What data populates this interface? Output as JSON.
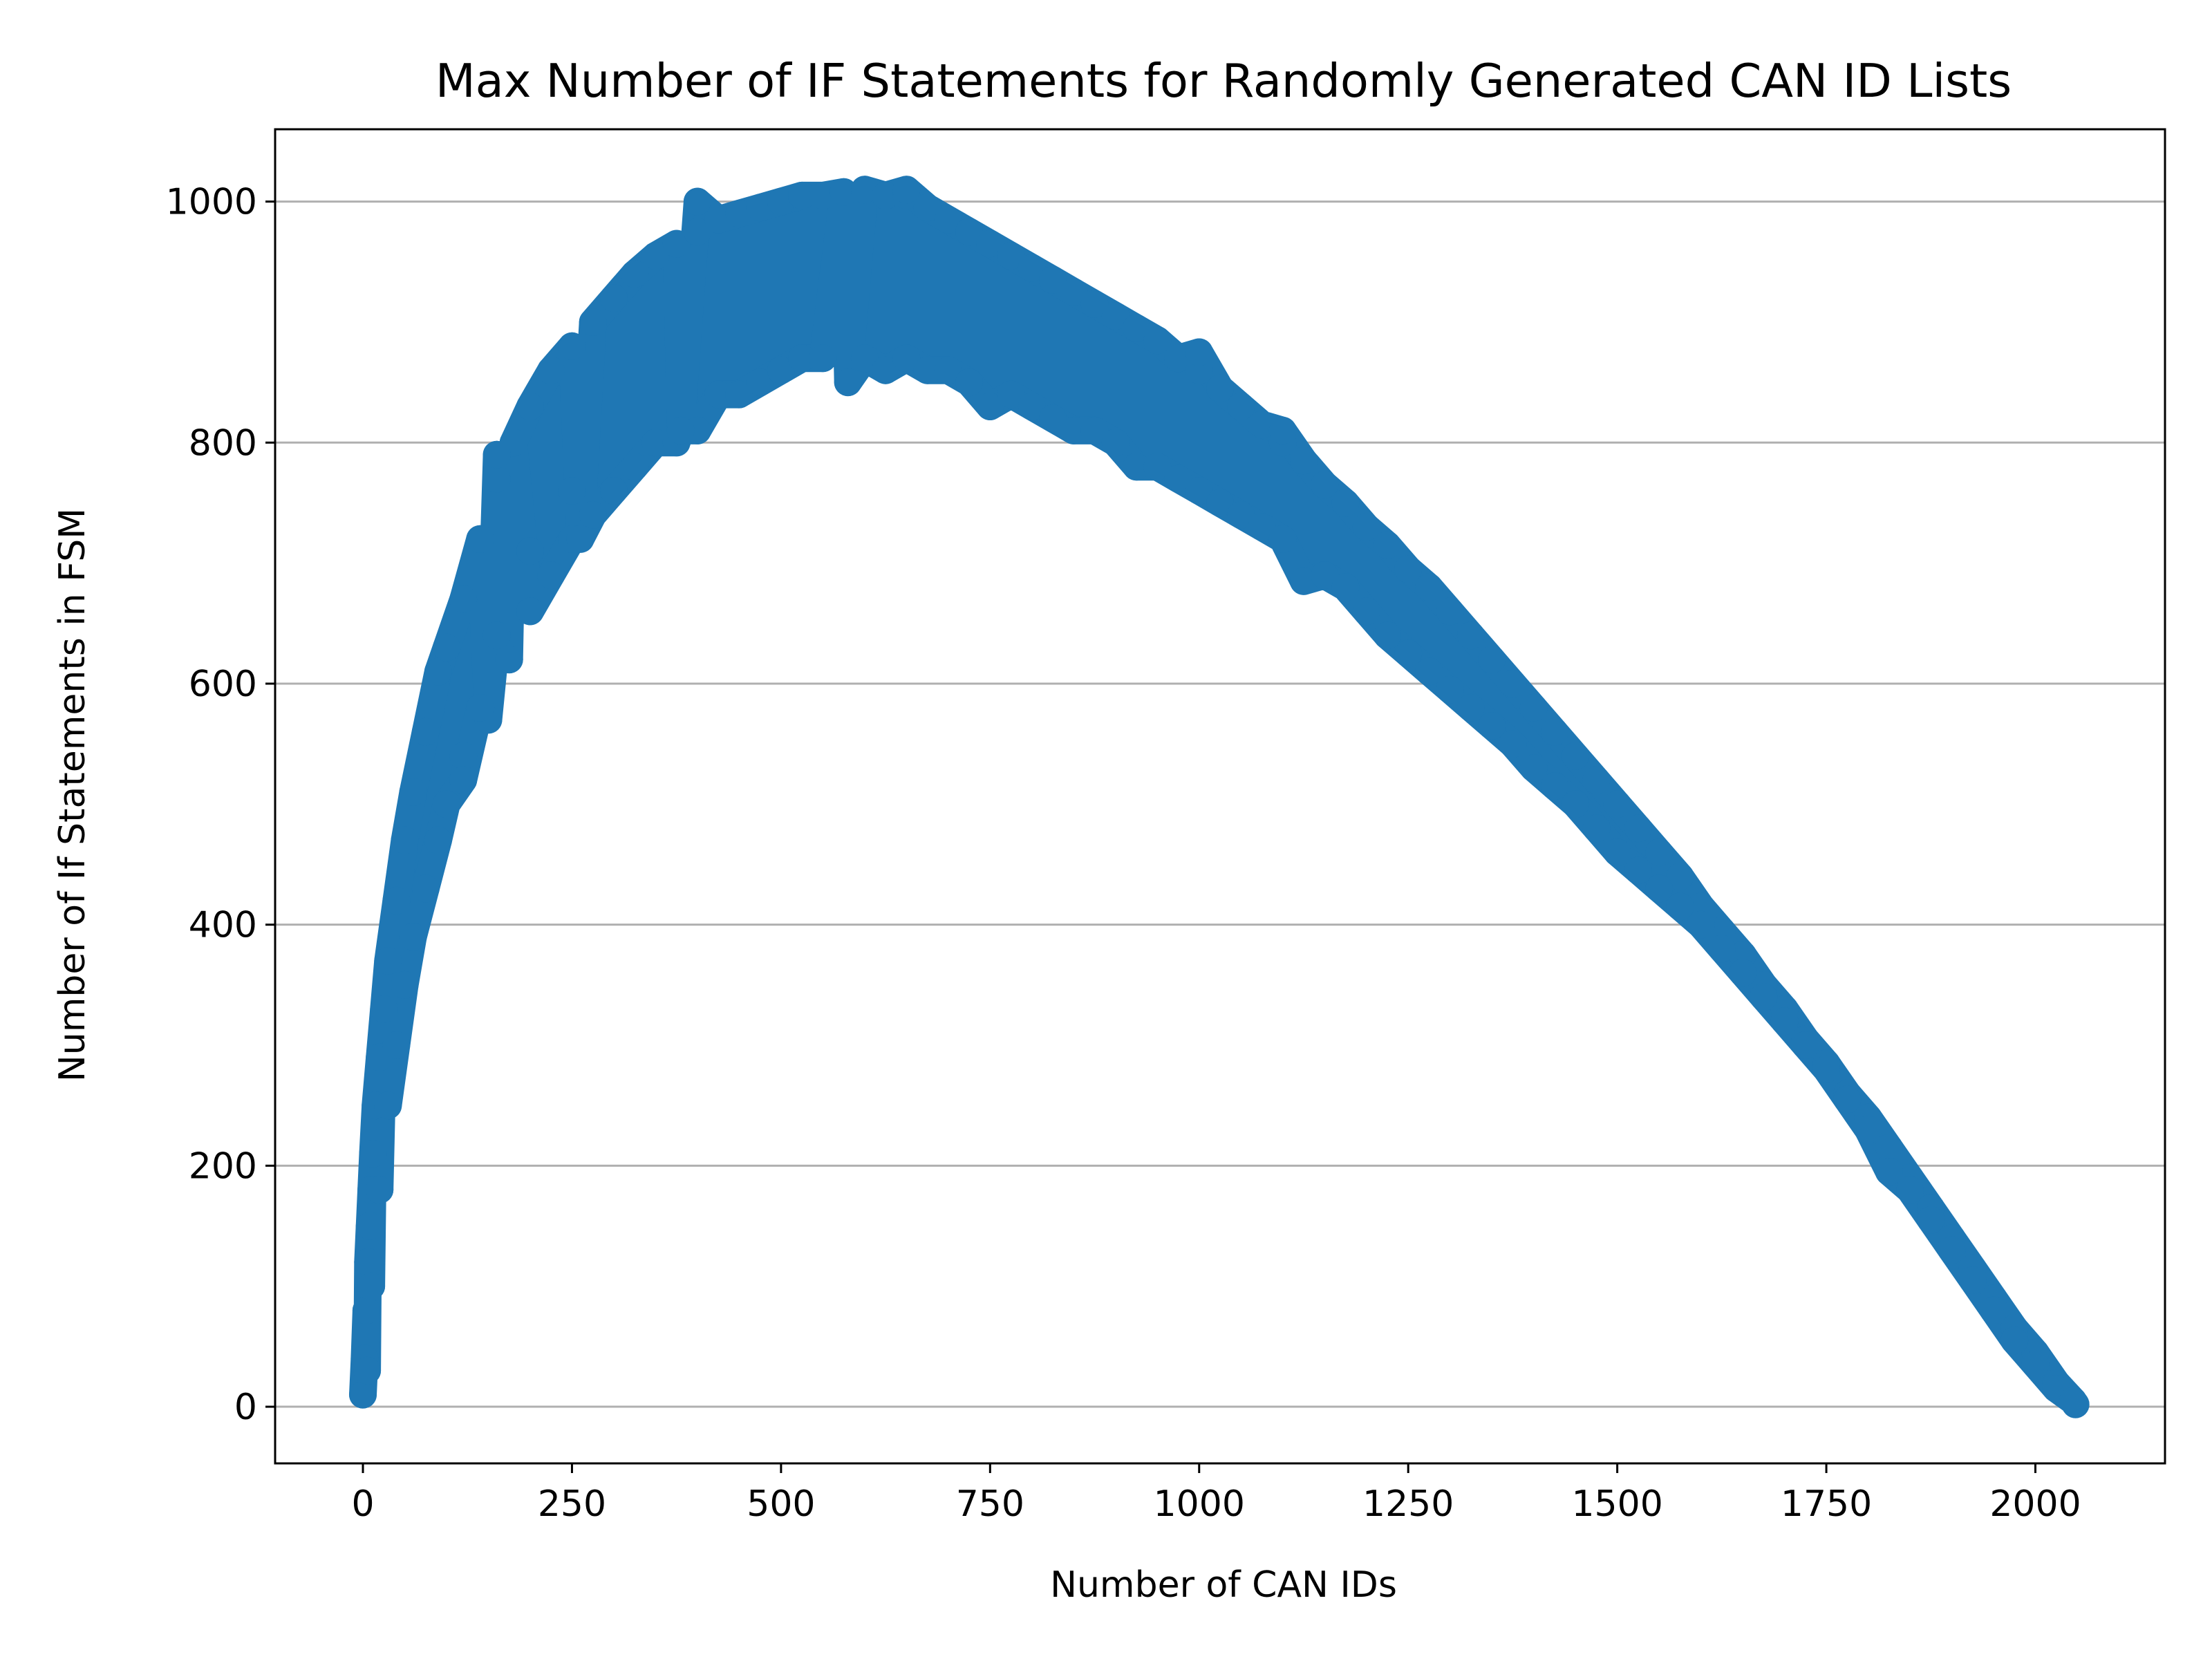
{
  "chart_data": {
    "type": "scatter",
    "title": "Max Number of IF Statements for Randomly Generated CAN ID Lists",
    "xlabel": "Number of CAN IDs",
    "ylabel": "Number of If Statements in FSM",
    "xlim": [
      -105,
      2155
    ],
    "ylim": [
      -47,
      1060
    ],
    "xticks": [
      0,
      250,
      500,
      750,
      1000,
      1250,
      1500,
      1750,
      2000
    ],
    "yticks": [
      0,
      200,
      400,
      600,
      800,
      1000
    ],
    "grid": "y",
    "legend": "none",
    "series": [
      {
        "color": "#1f77b4",
        "note_range": "points sampled along upper and lower envelope",
        "points": [
          [
            0,
            10
          ],
          [
            2,
            40
          ],
          [
            4,
            80
          ],
          [
            6,
            120
          ],
          [
            8,
            150
          ],
          [
            10,
            180
          ],
          [
            12,
            210
          ],
          [
            15,
            250
          ],
          [
            20,
            290
          ],
          [
            25,
            330
          ],
          [
            30,
            370
          ],
          [
            40,
            420
          ],
          [
            50,
            470
          ],
          [
            60,
            510
          ],
          [
            75,
            560
          ],
          [
            90,
            610
          ],
          [
            100,
            630
          ],
          [
            120,
            670
          ],
          [
            140,
            720
          ],
          [
            160,
            770
          ],
          [
            180,
            800
          ],
          [
            200,
            830
          ],
          [
            225,
            860
          ],
          [
            250,
            880
          ],
          [
            275,
            900
          ],
          [
            300,
            920
          ],
          [
            325,
            940
          ],
          [
            350,
            955
          ],
          [
            375,
            965
          ],
          [
            400,
            975
          ],
          [
            425,
            985
          ],
          [
            450,
            990
          ],
          [
            475,
            995
          ],
          [
            500,
            1000
          ],
          [
            525,
            1005
          ],
          [
            550,
            1005
          ],
          [
            575,
            1008
          ],
          [
            600,
            1010
          ],
          [
            625,
            1005
          ],
          [
            650,
            1005
          ],
          [
            675,
            995
          ],
          [
            700,
            985
          ],
          [
            725,
            975
          ],
          [
            750,
            965
          ],
          [
            775,
            955
          ],
          [
            800,
            945
          ],
          [
            825,
            935
          ],
          [
            850,
            925
          ],
          [
            875,
            915
          ],
          [
            900,
            905
          ],
          [
            925,
            895
          ],
          [
            950,
            885
          ],
          [
            975,
            870
          ],
          [
            1000,
            860
          ],
          [
            1025,
            845
          ],
          [
            1050,
            830
          ],
          [
            1075,
            815
          ],
          [
            1100,
            800
          ],
          [
            1125,
            785
          ],
          [
            1150,
            765
          ],
          [
            1175,
            750
          ],
          [
            1200,
            730
          ],
          [
            1225,
            715
          ],
          [
            1250,
            695
          ],
          [
            1275,
            680
          ],
          [
            1300,
            660
          ],
          [
            1325,
            640
          ],
          [
            1350,
            620
          ],
          [
            1375,
            600
          ],
          [
            1400,
            580
          ],
          [
            1425,
            560
          ],
          [
            1450,
            540
          ],
          [
            1475,
            520
          ],
          [
            1500,
            500
          ],
          [
            1525,
            480
          ],
          [
            1550,
            460
          ],
          [
            1575,
            440
          ],
          [
            1600,
            415
          ],
          [
            1625,
            395
          ],
          [
            1650,
            375
          ],
          [
            1675,
            350
          ],
          [
            1700,
            330
          ],
          [
            1725,
            305
          ],
          [
            1750,
            285
          ],
          [
            1775,
            260
          ],
          [
            1800,
            240
          ],
          [
            1825,
            215
          ],
          [
            1850,
            190
          ],
          [
            1875,
            165
          ],
          [
            1900,
            140
          ],
          [
            1925,
            115
          ],
          [
            1950,
            90
          ],
          [
            1975,
            65
          ],
          [
            2000,
            45
          ],
          [
            2025,
            20
          ],
          [
            2048,
            2
          ],
          [
            5,
            30
          ],
          [
            10,
            100
          ],
          [
            20,
            180
          ],
          [
            30,
            250
          ],
          [
            40,
            300
          ],
          [
            50,
            350
          ],
          [
            60,
            390
          ],
          [
            75,
            430
          ],
          [
            90,
            470
          ],
          [
            100,
            500
          ],
          [
            120,
            540
          ],
          [
            150,
            570
          ],
          [
            175,
            620
          ],
          [
            200,
            660
          ],
          [
            225,
            690
          ],
          [
            250,
            720
          ],
          [
            275,
            740
          ],
          [
            300,
            760
          ],
          [
            325,
            780
          ],
          [
            350,
            800
          ],
          [
            375,
            800
          ],
          [
            400,
            810
          ],
          [
            425,
            840
          ],
          [
            450,
            840
          ],
          [
            475,
            850
          ],
          [
            500,
            860
          ],
          [
            525,
            870
          ],
          [
            550,
            870
          ],
          [
            580,
            850
          ],
          [
            600,
            870
          ],
          [
            625,
            860
          ],
          [
            650,
            870
          ],
          [
            675,
            860
          ],
          [
            700,
            860
          ],
          [
            725,
            850
          ],
          [
            750,
            830
          ],
          [
            775,
            840
          ],
          [
            800,
            830
          ],
          [
            825,
            820
          ],
          [
            850,
            810
          ],
          [
            875,
            810
          ],
          [
            900,
            800
          ],
          [
            925,
            780
          ],
          [
            950,
            780
          ],
          [
            975,
            770
          ],
          [
            1000,
            760
          ],
          [
            1025,
            750
          ],
          [
            1050,
            740
          ],
          [
            1075,
            730
          ],
          [
            1100,
            720
          ],
          [
            1125,
            685
          ],
          [
            1150,
            690
          ],
          [
            1175,
            680
          ],
          [
            1200,
            660
          ],
          [
            1225,
            640
          ],
          [
            1250,
            625
          ],
          [
            1275,
            610
          ],
          [
            1300,
            595
          ],
          [
            1325,
            580
          ],
          [
            1350,
            565
          ],
          [
            1375,
            550
          ],
          [
            1400,
            530
          ],
          [
            1425,
            515
          ],
          [
            1450,
            500
          ],
          [
            1475,
            480
          ],
          [
            1500,
            460
          ],
          [
            1525,
            445
          ],
          [
            1550,
            430
          ],
          [
            1575,
            415
          ],
          [
            1600,
            400
          ],
          [
            1625,
            380
          ],
          [
            1650,
            360
          ],
          [
            1675,
            340
          ],
          [
            1700,
            320
          ],
          [
            1725,
            300
          ],
          [
            1750,
            280
          ],
          [
            1775,
            255
          ],
          [
            1800,
            230
          ],
          [
            1825,
            195
          ],
          [
            1850,
            180
          ],
          [
            1875,
            155
          ],
          [
            1900,
            130
          ],
          [
            1925,
            105
          ],
          [
            1950,
            80
          ],
          [
            1975,
            55
          ],
          [
            2000,
            35
          ],
          [
            2025,
            15
          ],
          [
            2045,
            5
          ],
          [
            120,
            520
          ],
          [
            140,
            580
          ],
          [
            160,
            640
          ],
          [
            200,
            710
          ],
          [
            250,
            760
          ],
          [
            260,
            720
          ],
          [
            400,
            1000
          ],
          [
            650,
            1010
          ],
          [
            160,
            790
          ],
          [
            380,
            810
          ],
          [
            1000,
            875
          ],
          [
            1100,
            810
          ]
        ]
      }
    ]
  }
}
